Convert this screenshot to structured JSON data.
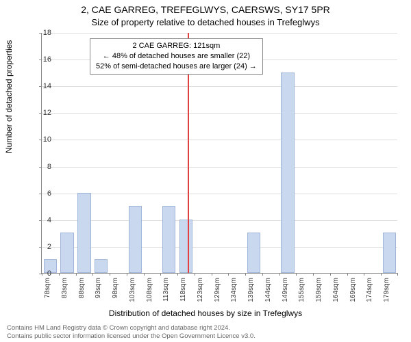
{
  "titles": {
    "line1": "2, CAE GARREG, TREFEGLWYS, CAERSWS, SY17 5PR",
    "line2": "Size of property relative to detached houses in Trefeglwys"
  },
  "ylabel": "Number of detached properties",
  "xlabel": "Distribution of detached houses by size in Trefeglwys",
  "footer": {
    "l1": "Contains HM Land Registry data © Crown copyright and database right 2024.",
    "l2": "Contains public sector information licensed under the Open Government Licence v3.0."
  },
  "info": {
    "l1": "2 CAE GARREG: 121sqm",
    "l2": "← 48% of detached houses are smaller (22)",
    "l3": "52% of semi-detached houses are larger (24) →"
  },
  "chart": {
    "type": "histogram",
    "ylim": [
      0,
      18
    ],
    "ytick_step": 2,
    "background_color": "#ffffff",
    "grid_color": "#dddddd",
    "axis_color": "#888888",
    "bar_fill": "#c9d8ee",
    "bar_border": "#9fb6d9",
    "marker_color": "#e04040",
    "marker_value": 121,
    "x_start": 78,
    "x_step": 5,
    "bar_width_ratio": 0.78,
    "categories": [
      "78sqm",
      "83sqm",
      "88sqm",
      "93sqm",
      "98sqm",
      "103sqm",
      "108sqm",
      "113sqm",
      "118sqm",
      "123sqm",
      "129sqm",
      "134sqm",
      "139sqm",
      "144sqm",
      "149sqm",
      "155sqm",
      "159sqm",
      "164sqm",
      "169sqm",
      "174sqm",
      "179sqm"
    ],
    "values": [
      1,
      3,
      6,
      1,
      0,
      5,
      0,
      5,
      4,
      0,
      0,
      0,
      3,
      0,
      15,
      0,
      0,
      0,
      0,
      0,
      3
    ],
    "title_fontsize": 14,
    "subtitle_fontsize": 13,
    "label_fontsize": 12,
    "tick_fontsize": 11
  }
}
